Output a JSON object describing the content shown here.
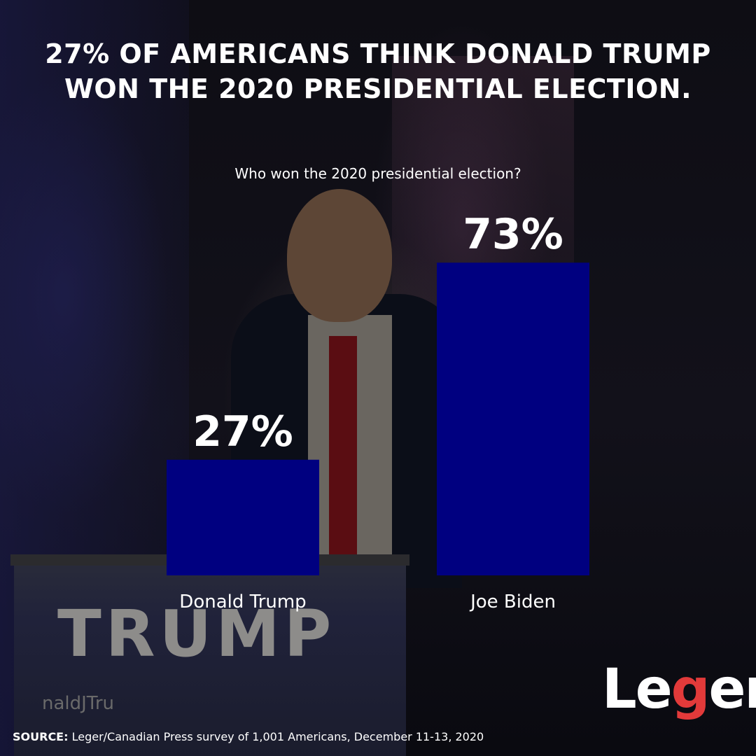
{
  "title_lines": [
    "27% OF AMERICANS THINK DONALD TRUMP",
    "WON THE 2020 PRESIDENTIAL ELECTION."
  ],
  "podium_sign": "TRUMP",
  "podium_handle": "naldJTru",
  "source": {
    "label": "SOURCE:",
    "text": " Leger/Canadian Press survey of 1,001 Americans, December 11-13, 2020"
  },
  "logo": {
    "text_left": "Le",
    "text_g": "g",
    "text_right": "er"
  },
  "colors": {
    "bar": "#000080",
    "text": "#ffffff",
    "logo_accent": "#e23a3a"
  },
  "chart_data": {
    "type": "bar",
    "title": "Who won the 2020 presidential election?",
    "categories": [
      "Donald Trump",
      "Joe Biden"
    ],
    "values": [
      27,
      73
    ],
    "value_labels": [
      "27%",
      "73%"
    ],
    "ylim": [
      0,
      100
    ],
    "grid": false
  }
}
